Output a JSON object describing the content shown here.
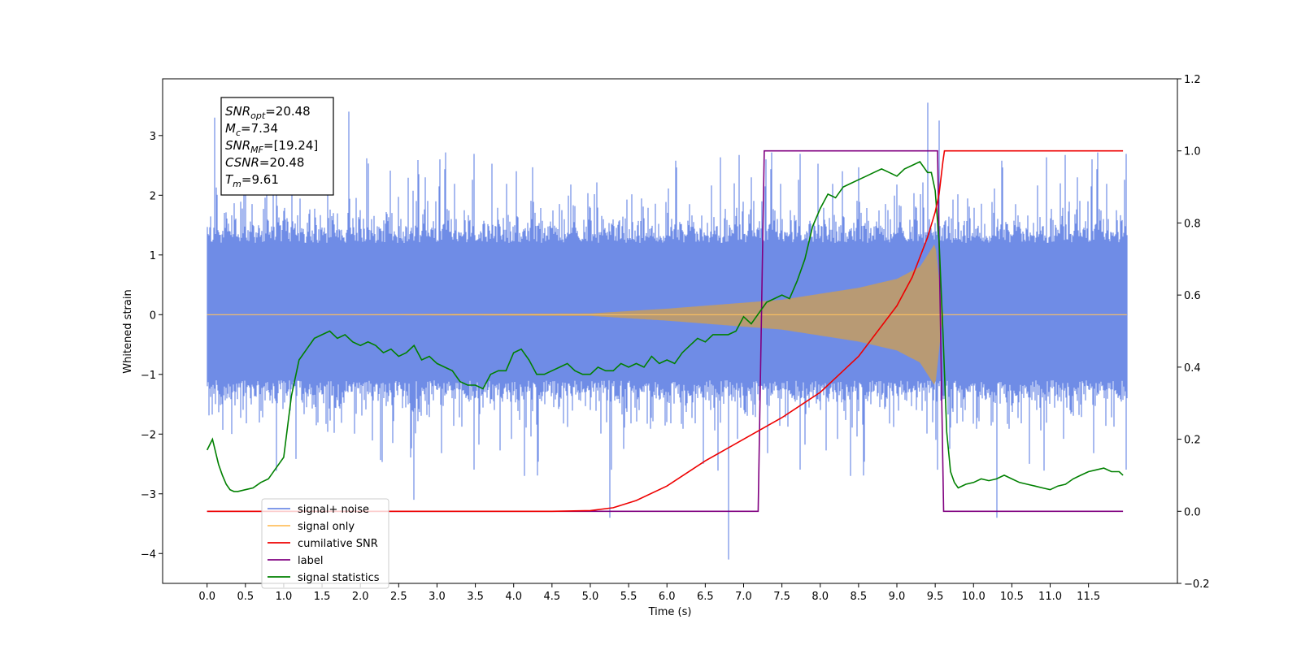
{
  "chart_data": {
    "type": "line",
    "xlabel": "Time (s)",
    "ylabel_left": "Whitened strain",
    "xlim": [
      -0.58,
      12.66
    ],
    "ylim_left": [
      -4.5,
      3.95
    ],
    "ylim_right": [
      -0.2,
      1.2
    ],
    "x_ticks": [
      0.0,
      0.5,
      1.0,
      1.5,
      2.0,
      2.5,
      3.0,
      3.5,
      4.0,
      4.5,
      5.0,
      5.5,
      6.0,
      6.5,
      7.0,
      7.5,
      8.0,
      8.5,
      9.0,
      9.5,
      10.0,
      10.5,
      11.0,
      11.5
    ],
    "x_tick_labels": [
      "0.0",
      "0.5",
      "1.0",
      "1.5",
      "2.0",
      "2.5",
      "3.0",
      "3.5",
      "4.0",
      "4.5",
      "5.0",
      "5.5",
      "6.0",
      "6.5",
      "7.0",
      "7.5",
      "8.0",
      "8.5",
      "9.0",
      "9.5",
      "10.0",
      "10.5",
      "11.0",
      "11.5"
    ],
    "y_left_ticks": [
      -4,
      -3,
      -2,
      -1,
      0,
      1,
      2,
      3
    ],
    "y_left_tick_labels": [
      "−4",
      "−3",
      "−2",
      "−1",
      "0",
      "1",
      "2",
      "3"
    ],
    "y_right_ticks": [
      -0.2,
      0.0,
      0.2,
      0.4,
      0.6,
      0.8,
      1.0,
      1.2
    ],
    "y_right_tick_labels": [
      "−0.2",
      "0.0",
      "0.2",
      "0.4",
      "0.6",
      "0.8",
      "1.0",
      "1.2"
    ],
    "annotation": [
      {
        "base": "SNR",
        "sub": "opt",
        "value": "=20.48"
      },
      {
        "base": "M",
        "sub": "c",
        "value": "=7.34"
      },
      {
        "base": "SNR",
        "sub": "MF",
        "value": "=[19.24]"
      },
      {
        "base": "CSNR",
        "sub": "",
        "value": "=20.48"
      },
      {
        "base": "T",
        "sub": "m",
        "value": "=9.61"
      }
    ],
    "legend_position": "lower-left",
    "legend": [
      {
        "label": "signal+ noise",
        "color": "#6f8ce6"
      },
      {
        "label": "signal only",
        "color": "#ffc060"
      },
      {
        "label": "cumilative SNR",
        "color": "#ee0000"
      },
      {
        "label": "label",
        "color": "#800080"
      },
      {
        "label": "signal statistics",
        "color": "#008000"
      }
    ],
    "series": [
      {
        "name": "signal+ noise",
        "axis": "left",
        "color": "#6f8ce6",
        "x_range": [
          0.0,
          12.0
        ],
        "envelope_typical": [
          -1.6,
          2.0
        ],
        "spikes": [
          [
            0.1,
            3.3
          ],
          [
            1.85,
            3.4
          ],
          [
            9.4,
            3.55
          ],
          [
            9.55,
            3.25
          ],
          [
            6.8,
            -4.1
          ],
          [
            10.3,
            -3.4
          ],
          [
            5.25,
            -3.4
          ],
          [
            2.7,
            -3.1
          ]
        ]
      },
      {
        "name": "signal only",
        "axis": "left",
        "color": "#ffc060",
        "fill_color": "#b89a74",
        "envelope": [
          [
            0.0,
            0.0
          ],
          [
            5.0,
            0.02
          ],
          [
            6.0,
            0.1
          ],
          [
            7.0,
            0.2
          ],
          [
            7.5,
            0.25
          ],
          [
            8.0,
            0.35
          ],
          [
            8.5,
            0.45
          ],
          [
            9.0,
            0.6
          ],
          [
            9.3,
            0.8
          ],
          [
            9.5,
            1.2
          ],
          [
            9.6,
            0.0
          ],
          [
            12.0,
            0.0
          ]
        ]
      },
      {
        "name": "cumilative SNR",
        "axis": "right",
        "color": "#ee0000",
        "x": [
          0.0,
          4.5,
          5.0,
          5.3,
          5.6,
          6.0,
          6.5,
          7.0,
          7.5,
          8.0,
          8.5,
          9.0,
          9.2,
          9.4,
          9.5,
          9.55,
          9.6,
          9.62,
          11.95
        ],
        "y": [
          0.0,
          0.0,
          0.002,
          0.01,
          0.03,
          0.07,
          0.14,
          0.2,
          0.26,
          0.33,
          0.43,
          0.57,
          0.65,
          0.76,
          0.83,
          0.88,
          0.97,
          1.0,
          1.0
        ]
      },
      {
        "name": "label",
        "axis": "right",
        "color": "#800080",
        "x": [
          0.0,
          7.19,
          7.27,
          9.53,
          9.61,
          11.95
        ],
        "y": [
          0.0,
          0.0,
          1.0,
          1.0,
          0.0,
          0.0
        ]
      },
      {
        "name": "signal statistics",
        "axis": "right",
        "color": "#008000",
        "x": [
          0.0,
          0.07,
          0.15,
          0.2,
          0.25,
          0.3,
          0.35,
          0.4,
          0.5,
          0.6,
          0.7,
          0.8,
          0.9,
          1.0,
          1.1,
          1.2,
          1.3,
          1.4,
          1.5,
          1.6,
          1.7,
          1.8,
          1.9,
          2.0,
          2.1,
          2.2,
          2.3,
          2.4,
          2.5,
          2.6,
          2.7,
          2.8,
          2.9,
          3.0,
          3.1,
          3.2,
          3.3,
          3.4,
          3.5,
          3.6,
          3.7,
          3.8,
          3.9,
          4.0,
          4.1,
          4.2,
          4.3,
          4.4,
          4.5,
          4.6,
          4.7,
          4.8,
          4.9,
          5.0,
          5.1,
          5.2,
          5.3,
          5.4,
          5.5,
          5.6,
          5.7,
          5.8,
          5.9,
          6.0,
          6.1,
          6.2,
          6.3,
          6.4,
          6.5,
          6.6,
          6.7,
          6.8,
          6.9,
          7.0,
          7.1,
          7.2,
          7.3,
          7.4,
          7.5,
          7.6,
          7.7,
          7.8,
          7.9,
          8.0,
          8.1,
          8.2,
          8.3,
          8.4,
          8.5,
          8.6,
          8.7,
          8.8,
          8.9,
          9.0,
          9.1,
          9.2,
          9.3,
          9.4,
          9.45,
          9.5,
          9.55,
          9.6,
          9.65,
          9.7,
          9.75,
          9.8,
          9.9,
          10.0,
          10.1,
          10.2,
          10.3,
          10.4,
          10.5,
          10.6,
          10.7,
          10.8,
          10.9,
          11.0,
          11.1,
          11.2,
          11.3,
          11.4,
          11.5,
          11.6,
          11.7,
          11.8,
          11.9,
          11.95
        ],
        "y": [
          0.17,
          0.2,
          0.13,
          0.1,
          0.075,
          0.06,
          0.055,
          0.055,
          0.06,
          0.065,
          0.08,
          0.09,
          0.12,
          0.15,
          0.32,
          0.42,
          0.45,
          0.48,
          0.49,
          0.5,
          0.48,
          0.49,
          0.47,
          0.46,
          0.47,
          0.46,
          0.44,
          0.45,
          0.43,
          0.44,
          0.46,
          0.42,
          0.43,
          0.41,
          0.4,
          0.39,
          0.36,
          0.35,
          0.35,
          0.34,
          0.38,
          0.39,
          0.39,
          0.44,
          0.45,
          0.42,
          0.38,
          0.38,
          0.39,
          0.4,
          0.41,
          0.39,
          0.38,
          0.38,
          0.4,
          0.39,
          0.39,
          0.41,
          0.4,
          0.41,
          0.4,
          0.43,
          0.41,
          0.42,
          0.41,
          0.44,
          0.46,
          0.48,
          0.47,
          0.49,
          0.49,
          0.49,
          0.5,
          0.54,
          0.52,
          0.55,
          0.58,
          0.59,
          0.6,
          0.59,
          0.64,
          0.7,
          0.79,
          0.84,
          0.88,
          0.87,
          0.9,
          0.91,
          0.92,
          0.93,
          0.94,
          0.95,
          0.94,
          0.93,
          0.95,
          0.96,
          0.97,
          0.94,
          0.94,
          0.89,
          0.75,
          0.5,
          0.22,
          0.11,
          0.08,
          0.065,
          0.075,
          0.08,
          0.09,
          0.085,
          0.09,
          0.1,
          0.09,
          0.08,
          0.075,
          0.07,
          0.065,
          0.06,
          0.07,
          0.075,
          0.09,
          0.1,
          0.11,
          0.115,
          0.12,
          0.11,
          0.11,
          0.1
        ]
      }
    ]
  }
}
